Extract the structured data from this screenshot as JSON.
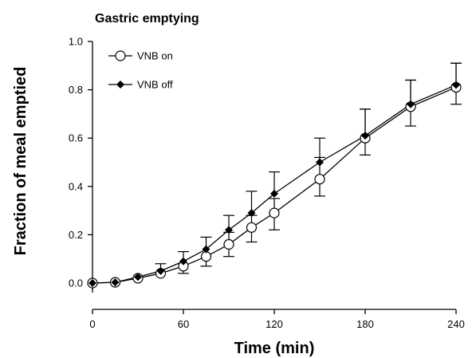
{
  "chart_data": {
    "type": "line",
    "title": "Gastric emptying",
    "xlabel": "Time (min)",
    "ylabel": "Fraction of meal emptied",
    "xlim": [
      0,
      240
    ],
    "ylim": [
      0,
      1.0
    ],
    "xticks": [
      0,
      60,
      120,
      180,
      240
    ],
    "yticks": [
      0.0,
      0.2,
      0.4,
      0.6,
      0.8,
      1.0
    ],
    "xtick_labels": [
      "0",
      "60",
      "120",
      "180",
      "240"
    ],
    "ytick_labels": [
      "0.0",
      "0.2",
      "0.4",
      "0.6",
      "0.8",
      "1.0"
    ],
    "grid": false,
    "legend_position": "top-left",
    "series": [
      {
        "name": "VNB on",
        "marker": "open-circle",
        "color": "#000000",
        "x": [
          0,
          15,
          30,
          45,
          60,
          75,
          90,
          105,
          120,
          150,
          180,
          210,
          240
        ],
        "y": [
          0.0,
          0.003,
          0.02,
          0.04,
          0.07,
          0.11,
          0.16,
          0.23,
          0.29,
          0.43,
          0.6,
          0.73,
          0.81
        ],
        "err_upper": [
          null,
          null,
          null,
          null,
          null,
          null,
          0.21,
          0.28,
          0.35,
          0.52,
          0.72,
          0.84,
          0.91
        ],
        "err_lower": [
          null,
          null,
          null,
          null,
          0.04,
          0.07,
          0.11,
          0.17,
          0.22,
          0.36,
          0.53,
          0.65,
          0.74
        ]
      },
      {
        "name": "VNB off",
        "marker": "filled-diamond",
        "color": "#000000",
        "x": [
          0,
          15,
          30,
          45,
          60,
          75,
          90,
          105,
          120,
          150,
          180,
          210,
          240
        ],
        "y": [
          0.0,
          0.003,
          0.025,
          0.05,
          0.09,
          0.14,
          0.22,
          0.29,
          0.37,
          0.5,
          0.61,
          0.74,
          0.82
        ],
        "err_upper": [
          null,
          null,
          null,
          0.08,
          0.13,
          0.19,
          0.28,
          0.38,
          0.46,
          0.6,
          0.72,
          0.84,
          0.91
        ],
        "err_lower": [
          null,
          null,
          null,
          null,
          null,
          null,
          null,
          null,
          null,
          null,
          null,
          null,
          null
        ]
      }
    ]
  }
}
